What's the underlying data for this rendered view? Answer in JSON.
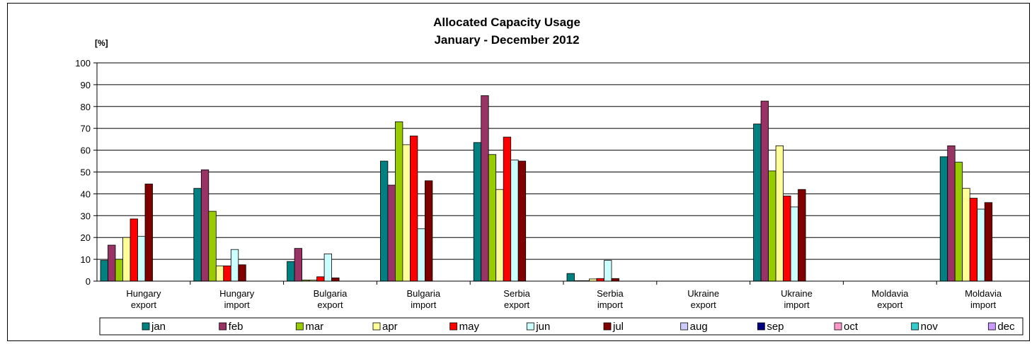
{
  "chart_data": {
    "type": "bar",
    "title": "Allocated Capacity Usage",
    "subtitle": "January - December 2012",
    "ylabel": "[%]",
    "xlabel": "",
    "ylim": [
      0,
      100
    ],
    "yticks": [
      0,
      10,
      20,
      30,
      40,
      50,
      60,
      70,
      80,
      90,
      100
    ],
    "grid": true,
    "legend_position": "bottom",
    "categories": [
      [
        "Hungary",
        "export"
      ],
      [
        "Hungary",
        "import"
      ],
      [
        "Bulgaria",
        "export"
      ],
      [
        "Bulgaria",
        "import"
      ],
      [
        "Serbia",
        "export"
      ],
      [
        "Serbia",
        "import"
      ],
      [
        "Ukraine",
        "export"
      ],
      [
        "Ukraine",
        "import"
      ],
      [
        "Moldavia",
        "export"
      ],
      [
        "Moldavia",
        "import"
      ]
    ],
    "series": [
      {
        "name": "jan",
        "color": "#008080",
        "values": [
          9.5,
          42.5,
          9.0,
          55.0,
          63.5,
          3.5,
          0,
          72.0,
          0,
          57.0
        ]
      },
      {
        "name": "feb",
        "color": "#993366",
        "values": [
          16.5,
          51.0,
          15.0,
          44.0,
          85.0,
          0.2,
          0,
          82.5,
          0,
          62.0
        ]
      },
      {
        "name": "mar",
        "color": "#99CC00",
        "values": [
          10.0,
          32.0,
          0.5,
          73.0,
          58.0,
          0.2,
          0,
          50.5,
          0,
          54.5
        ]
      },
      {
        "name": "apr",
        "color": "#FFFF99",
        "values": [
          20.0,
          7.0,
          0.5,
          62.5,
          42.0,
          1.0,
          0,
          62.0,
          0,
          42.5
        ]
      },
      {
        "name": "may",
        "color": "#FF0000",
        "values": [
          28.5,
          7.0,
          2.0,
          66.5,
          66.0,
          1.2,
          0,
          39.0,
          0,
          38.0
        ]
      },
      {
        "name": "jun",
        "color": "#CCFFFF",
        "values": [
          20.5,
          14.5,
          12.5,
          24.0,
          55.5,
          9.5,
          0,
          34.0,
          0,
          33.0
        ]
      },
      {
        "name": "jul",
        "color": "#800000",
        "values": [
          44.5,
          7.5,
          1.5,
          46.0,
          55.0,
          1.2,
          0,
          42.0,
          0,
          36.0
        ]
      },
      {
        "name": "aug",
        "color": "#CCCCFF",
        "values": [
          0,
          0,
          0,
          0,
          0,
          0,
          0,
          0,
          0,
          0
        ]
      },
      {
        "name": "sep",
        "color": "#000080",
        "values": [
          0,
          0,
          0,
          0,
          0,
          0,
          0,
          0,
          0,
          0
        ]
      },
      {
        "name": "oct",
        "color": "#FF99CC",
        "values": [
          0,
          0,
          0,
          0,
          0,
          0,
          0,
          0,
          0,
          0
        ]
      },
      {
        "name": "nov",
        "color": "#33CCCC",
        "values": [
          0,
          0,
          0,
          0,
          0,
          0,
          0,
          0,
          0,
          0
        ]
      },
      {
        "name": "dec",
        "color": "#CC99FF",
        "values": [
          0,
          0,
          0,
          0,
          0,
          0,
          0,
          0,
          0,
          0
        ]
      }
    ]
  }
}
